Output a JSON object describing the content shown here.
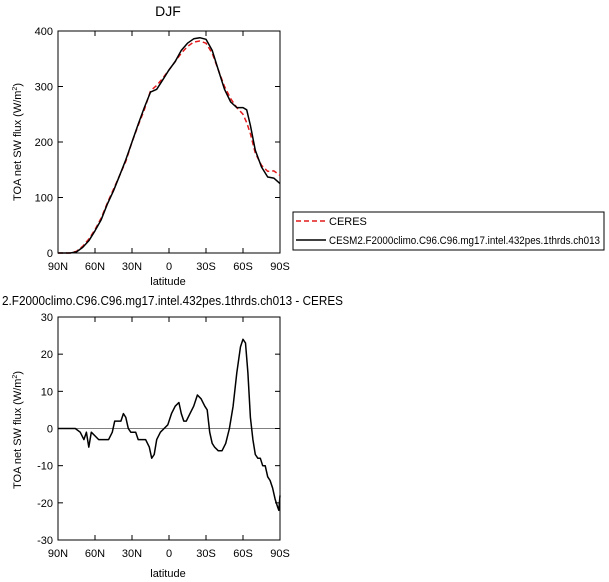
{
  "chart_data": [
    {
      "type": "line",
      "title": "DJF",
      "xlabel": "latitude",
      "ylabel": "TOA net SW flux (W/m²)",
      "ylabel_main": "TOA net SW flux (W/m",
      "ylabel_sup": "2",
      "ylabel_tail": ")",
      "xlim": [
        -90,
        90
      ],
      "ylim": [
        0,
        400
      ],
      "x_ticks": [
        {
          "value": -90,
          "label": "90N"
        },
        {
          "value": -60,
          "label": "60N"
        },
        {
          "value": -30,
          "label": "30N"
        },
        {
          "value": 0,
          "label": "0"
        },
        {
          "value": 30,
          "label": "30S"
        },
        {
          "value": 60,
          "label": "60S"
        },
        {
          "value": 90,
          "label": "90S"
        }
      ],
      "y_ticks": [
        0,
        100,
        200,
        300,
        400
      ],
      "legend_position": "right of plot",
      "series": [
        {
          "name": "CERES",
          "color": "#e31a1c",
          "style": "dashed",
          "x": [
            -90,
            -80,
            -75,
            -70,
            -65,
            -60,
            -55,
            -50,
            -45,
            -40,
            -35,
            -30,
            -25,
            -20,
            -15,
            -12,
            -10,
            -5,
            0,
            5,
            10,
            15,
            20,
            25,
            30,
            35,
            40,
            45,
            50,
            55,
            60,
            63,
            66,
            70,
            75,
            80,
            85,
            90
          ],
          "y": [
            0,
            0,
            3,
            12,
            25,
            42,
            63,
            90,
            115,
            140,
            165,
            200,
            230,
            258,
            292,
            298,
            302,
            315,
            330,
            345,
            360,
            372,
            380,
            382,
            378,
            360,
            330,
            300,
            278,
            262,
            250,
            235,
            215,
            180,
            158,
            147,
            148,
            140
          ]
        },
        {
          "name": "CESM2.F2000climo.C96.C96.mg17.intel.432pes.1thrds.ch013",
          "color": "#000000",
          "style": "solid",
          "x": [
            -90,
            -80,
            -75,
            -70,
            -65,
            -60,
            -55,
            -50,
            -45,
            -40,
            -35,
            -30,
            -25,
            -20,
            -15,
            -12,
            -10,
            -5,
            0,
            5,
            10,
            15,
            20,
            25,
            30,
            35,
            40,
            45,
            50,
            55,
            60,
            63,
            66,
            70,
            75,
            80,
            85,
            90
          ],
          "y": [
            0,
            0,
            2,
            10,
            22,
            40,
            60,
            88,
            112,
            140,
            168,
            200,
            232,
            262,
            290,
            293,
            295,
            312,
            330,
            345,
            365,
            378,
            386,
            388,
            385,
            365,
            330,
            295,
            272,
            262,
            262,
            258,
            230,
            185,
            155,
            137,
            135,
            125
          ]
        }
      ]
    },
    {
      "type": "line",
      "title": "2.F2000climo.C96.C96.mg17.intel.432pes.1thrds.ch013 - CERES",
      "xlabel": "latitude",
      "ylabel": "TOA net SW flux (W/m²)",
      "ylabel_main": "TOA net SW flux (W/m",
      "ylabel_sup": "2",
      "ylabel_tail": ")",
      "xlim": [
        -90,
        90
      ],
      "ylim": [
        -30,
        30
      ],
      "x_ticks": [
        {
          "value": -90,
          "label": "90N"
        },
        {
          "value": -60,
          "label": "60N"
        },
        {
          "value": -30,
          "label": "30N"
        },
        {
          "value": 0,
          "label": "0"
        },
        {
          "value": 30,
          "label": "30S"
        },
        {
          "value": 60,
          "label": "60S"
        },
        {
          "value": 90,
          "label": "90S"
        }
      ],
      "y_ticks": [
        -30,
        -20,
        -10,
        0,
        10,
        20,
        30
      ],
      "series": [
        {
          "color": "#000000",
          "style": "solid",
          "x": [
            -90,
            -82,
            -76,
            -72,
            -69,
            -67,
            -65,
            -63,
            -60,
            -57,
            -53,
            -49,
            -46,
            -44,
            -42,
            -39,
            -37,
            -35,
            -33,
            -31,
            -29,
            -27,
            -25,
            -22,
            -19,
            -16,
            -14,
            -12,
            -10,
            -7,
            -4,
            -1,
            2,
            5,
            8,
            10,
            12,
            14,
            17,
            20,
            23,
            26,
            29,
            31,
            33,
            35,
            37,
            40,
            43,
            46,
            49,
            52,
            55,
            58,
            60,
            62,
            64,
            66,
            68,
            70,
            72,
            74,
            76,
            78,
            80,
            82,
            84,
            86,
            88,
            89,
            90
          ],
          "y": [
            0,
            0,
            0,
            -1,
            -3,
            -1,
            -5,
            -1,
            -2,
            -3,
            -3,
            -3,
            -1,
            2,
            2,
            2,
            4,
            3,
            0,
            -1,
            -1,
            -1,
            -3,
            -3,
            -3,
            -5,
            -8,
            -7,
            -3,
            -1,
            0,
            1,
            4,
            6,
            7,
            4,
            2,
            2,
            4,
            6,
            9,
            8,
            6,
            5,
            -1,
            -4,
            -5,
            -6,
            -6,
            -4,
            0,
            6,
            15,
            22,
            24,
            23,
            15,
            3,
            -3,
            -7,
            -8,
            -8,
            -10,
            -10,
            -13,
            -14,
            -16,
            -19,
            -21,
            -22,
            -18
          ]
        }
      ],
      "zero_line": true
    }
  ]
}
